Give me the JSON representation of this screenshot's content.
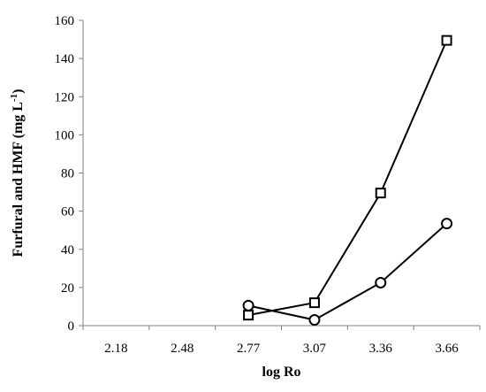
{
  "chart_data": {
    "type": "line",
    "xlabel": "log Ro",
    "ylabel": {
      "prefix": "Furfural and HMF (mg L",
      "superscript": "-1",
      "suffix": ")"
    },
    "categories": [
      "2.18",
      "2.48",
      "2.77",
      "3.07",
      "3.36",
      "3.66"
    ],
    "ylim": [
      0,
      160
    ],
    "yticks": [
      0,
      20,
      40,
      60,
      80,
      100,
      120,
      140,
      160
    ],
    "grid": false,
    "legend": "none",
    "series": [
      {
        "marker": "square",
        "color": "#000000",
        "values": [
          null,
          null,
          5.5,
          12,
          69.5,
          149.5
        ]
      },
      {
        "marker": "circle",
        "color": "#000000",
        "values": [
          null,
          null,
          10.5,
          3,
          22.5,
          53.5
        ]
      }
    ]
  }
}
